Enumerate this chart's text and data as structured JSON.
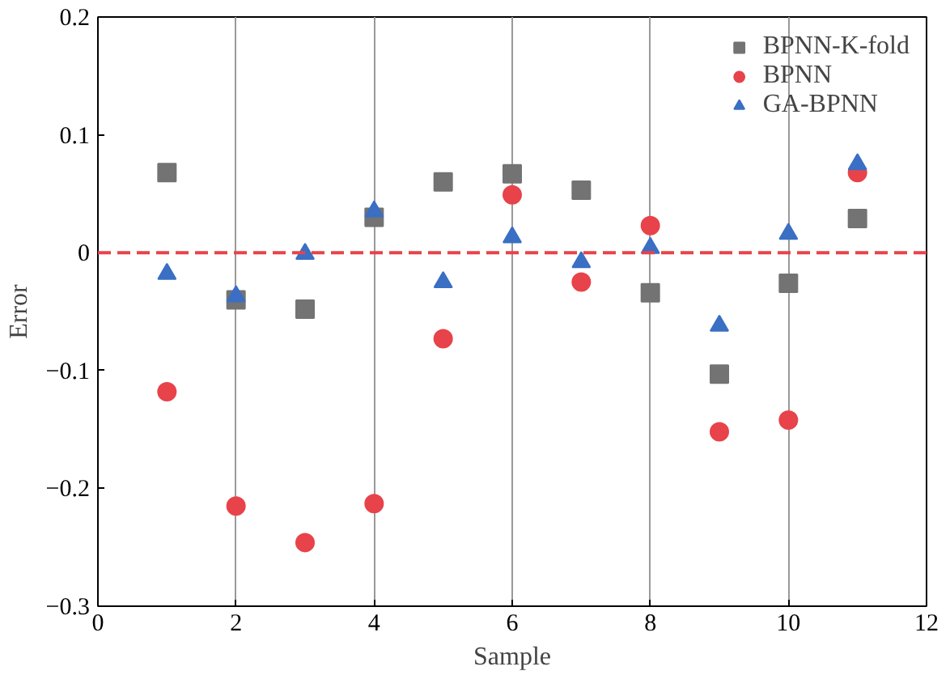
{
  "chart_data": {
    "type": "scatter",
    "xlabel": "Sample",
    "ylabel": "Error",
    "x": [
      1,
      2,
      3,
      4,
      5,
      6,
      7,
      8,
      9,
      10,
      11
    ],
    "series": [
      {
        "name": "BPNN-K-fold",
        "color": "#737373",
        "marker": "square",
        "values": [
          0.068,
          -0.04,
          -0.048,
          0.03,
          0.06,
          0.067,
          0.053,
          -0.034,
          -0.103,
          -0.026,
          0.029
        ]
      },
      {
        "name": "BPNN",
        "color": "#e8434a",
        "marker": "circle",
        "values": [
          -0.118,
          -0.215,
          -0.246,
          -0.213,
          -0.073,
          0.049,
          -0.025,
          0.023,
          -0.152,
          -0.142,
          0.068
        ]
      },
      {
        "name": "GA-BPNN",
        "color": "#3a6fc4",
        "marker": "triangle",
        "values": [
          -0.018,
          -0.037,
          -0.001,
          0.035,
          -0.025,
          0.013,
          -0.008,
          0.004,
          -0.062,
          0.016,
          0.075
        ]
      }
    ],
    "xlim": [
      0,
      12
    ],
    "xticks": [
      0,
      2,
      4,
      6,
      8,
      10,
      12
    ],
    "ylim": [
      -0.3,
      0.2
    ],
    "yticks": [
      {
        "value": -0.3,
        "label": "−0.3"
      },
      {
        "value": -0.2,
        "label": "−0.2"
      },
      {
        "value": -0.1,
        "label": "−0.1"
      },
      0,
      0.1,
      0.2
    ],
    "ref_lines": [
      {
        "axis": "y",
        "value": 0,
        "color": "#e8434a",
        "line_style": "dashed"
      }
    ],
    "grid": "x",
    "legend": "top right"
  }
}
